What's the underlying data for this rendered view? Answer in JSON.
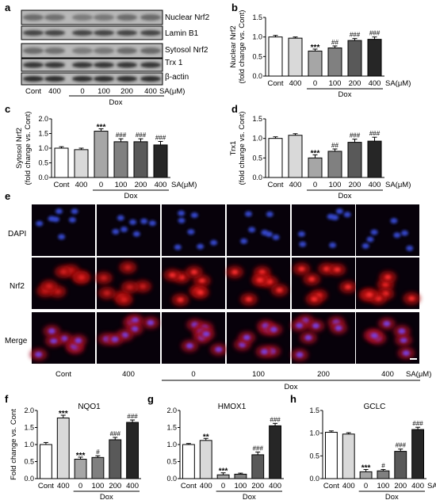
{
  "panels": {
    "a": "a",
    "b": "b",
    "c": "c",
    "d": "d",
    "e": "e",
    "f": "f",
    "g": "g",
    "h": "h"
  },
  "blot": {
    "rows": [
      "Nuclear Nrf2",
      "Lamin B1",
      "Sytosol Nrf2",
      "Trx 1",
      "β-actin"
    ],
    "lanes": [
      "Cont",
      "400",
      "0",
      "100",
      "200",
      "400"
    ],
    "unit": "SA(μM)",
    "group": "Dox"
  },
  "micro": {
    "rows": [
      "DAPI",
      "Nrf2",
      "Merge"
    ],
    "cols": [
      "Cont",
      "400",
      "0",
      "100",
      "200",
      "400"
    ],
    "unit": "SA(μM)",
    "group": "Dox"
  },
  "bar_colors": [
    "#ffffff",
    "#d9d9d9",
    "#a6a6a6",
    "#808080",
    "#595959",
    "#262626"
  ],
  "chart_data": [
    {
      "id": "b",
      "type": "bar",
      "ylabel": [
        "Nuclear Nrf2",
        "(fold change vs. Cont)"
      ],
      "categories": [
        "Cont",
        "400",
        "0",
        "100",
        "200",
        "400"
      ],
      "values": [
        1.0,
        0.97,
        0.64,
        0.72,
        0.91,
        0.94
      ],
      "errors": [
        0.04,
        0.03,
        0.05,
        0.05,
        0.05,
        0.06
      ],
      "marks": [
        "",
        "",
        "***",
        "##",
        "###",
        "###"
      ],
      "ylim": [
        0,
        1.5
      ],
      "yticks": [
        "0.0",
        "0.5",
        "1.0",
        "1.5"
      ],
      "unit": "SA(μM)",
      "group": "Dox"
    },
    {
      "id": "c",
      "type": "bar",
      "ylabel": [
        "Sytosol Nrf2",
        "(fold change vs. Cont)"
      ],
      "categories": [
        "Cont",
        "400",
        "0",
        "100",
        "200",
        "400"
      ],
      "values": [
        1.0,
        0.95,
        1.58,
        1.22,
        1.22,
        1.11
      ],
      "errors": [
        0.05,
        0.05,
        0.08,
        0.1,
        0.1,
        0.12
      ],
      "marks": [
        "",
        "",
        "***",
        "###",
        "###",
        "###"
      ],
      "ylim": [
        0,
        2.0
      ],
      "yticks": [
        "0.0",
        "0.5",
        "1.0",
        "1.5",
        "2.0"
      ],
      "unit": "SA(μM)",
      "group": "Dox"
    },
    {
      "id": "d",
      "type": "bar",
      "ylabel": [
        "Trx1",
        "(fold change vs. Cont)"
      ],
      "categories": [
        "Cont",
        "400",
        "0",
        "100",
        "200",
        "400"
      ],
      "values": [
        1.0,
        1.08,
        0.5,
        0.67,
        0.9,
        0.93
      ],
      "errors": [
        0.04,
        0.04,
        0.08,
        0.06,
        0.08,
        0.1
      ],
      "marks": [
        "",
        "",
        "***",
        "##",
        "###",
        "###"
      ],
      "ylim": [
        0,
        1.5
      ],
      "yticks": [
        "0.0",
        "0.5",
        "1.0",
        "1.5"
      ],
      "unit": "SA(μM)",
      "group": "Dox"
    },
    {
      "id": "f",
      "type": "bar",
      "title": "NQO1",
      "ylabel": [
        "Fold change vs. Cont"
      ],
      "categories": [
        "Cont",
        "400",
        "0",
        "100",
        "200",
        "400"
      ],
      "values": [
        1.0,
        1.78,
        0.57,
        0.62,
        1.14,
        1.65
      ],
      "errors": [
        0.06,
        0.08,
        0.06,
        0.05,
        0.07,
        0.07
      ],
      "marks": [
        "",
        "***",
        "***",
        "#",
        "###",
        "###"
      ],
      "ylim": [
        0,
        2.0
      ],
      "yticks": [
        "0.0",
        "0.5",
        "1.0",
        "1.5",
        "2.0"
      ],
      "unit": "",
      "group": "Dox"
    },
    {
      "id": "g",
      "type": "bar",
      "title": "HMOX1",
      "ylabel": [],
      "categories": [
        "Cont",
        "400",
        "0",
        "100",
        "200",
        "400"
      ],
      "values": [
        1.0,
        1.12,
        0.11,
        0.13,
        0.7,
        1.55
      ],
      "errors": [
        0.03,
        0.06,
        0.06,
        0.03,
        0.08,
        0.07
      ],
      "marks": [
        "",
        "**",
        "***",
        "",
        "###",
        "###"
      ],
      "ylim": [
        0,
        2.0
      ],
      "yticks": [
        "0.0",
        "0.5",
        "1.0",
        "1.5",
        "2.0"
      ],
      "unit": "",
      "group": "Dox"
    },
    {
      "id": "h",
      "type": "bar",
      "title": "GCLC",
      "ylabel": [],
      "categories": [
        "Cont",
        "400",
        "0",
        "100",
        "200",
        "400"
      ],
      "values": [
        1.02,
        0.98,
        0.15,
        0.17,
        0.6,
        1.08
      ],
      "errors": [
        0.03,
        0.03,
        0.05,
        0.03,
        0.05,
        0.05
      ],
      "marks": [
        "",
        "",
        "***",
        "#",
        "###",
        "###"
      ],
      "ylim": [
        0,
        1.5
      ],
      "yticks": [
        "0.0",
        "0.5",
        "1.0",
        "1.5"
      ],
      "unit": "SA(μM)",
      "group": "Dox"
    }
  ]
}
